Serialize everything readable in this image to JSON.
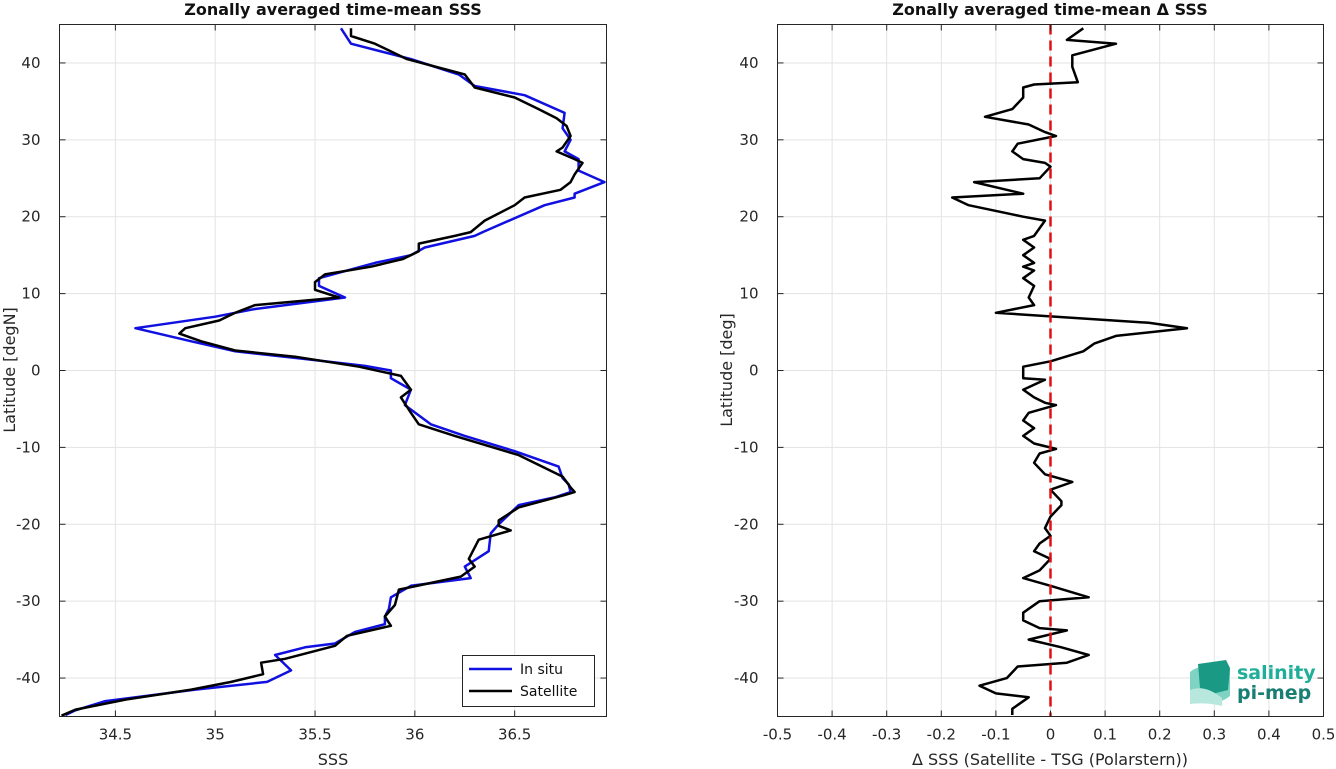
{
  "chart_data": [
    {
      "type": "line",
      "title": "Zonally averaged time-mean SSS",
      "xlabel": "SSS",
      "ylabel": "Latitude [degN]",
      "xlim": [
        34.22,
        36.96
      ],
      "ylim": [
        -45,
        45
      ],
      "xticks": [
        34.5,
        35,
        35.5,
        36,
        36.5
      ],
      "yticks": [
        -40,
        -30,
        -20,
        -10,
        0,
        10,
        20,
        30,
        40
      ],
      "grid": true,
      "legend": "bottom-right",
      "series": [
        {
          "name": "In situ",
          "color": "#1010e0",
          "points": [
            [
              35.63,
              44.5
            ],
            [
              35.68,
              42.5
            ],
            [
              35.98,
              40.5
            ],
            [
              36.22,
              38.5
            ],
            [
              36.3,
              37
            ],
            [
              36.55,
              35.8
            ],
            [
              36.75,
              33.5
            ],
            [
              36.74,
              31.5
            ],
            [
              36.78,
              30
            ],
            [
              36.75,
              28.5
            ],
            [
              36.82,
              27.5
            ],
            [
              36.82,
              26
            ],
            [
              36.95,
              24.5
            ],
            [
              36.8,
              23
            ],
            [
              36.8,
              22.5
            ],
            [
              36.65,
              21.5
            ],
            [
              36.34,
              18
            ],
            [
              36.3,
              17.5
            ],
            [
              36.05,
              16
            ],
            [
              35.98,
              15
            ],
            [
              35.8,
              14
            ],
            [
              35.52,
              12
            ],
            [
              35.52,
              11
            ],
            [
              35.65,
              9.5
            ],
            [
              35.2,
              8
            ],
            [
              35.0,
              7
            ],
            [
              34.6,
              5.5
            ],
            [
              34.88,
              3.8
            ],
            [
              35.1,
              2.5
            ],
            [
              35.45,
              1.5
            ],
            [
              35.75,
              0.6
            ],
            [
              35.88,
              0
            ],
            [
              35.88,
              -1
            ],
            [
              35.98,
              -2.5
            ],
            [
              35.95,
              -4.5
            ],
            [
              36.08,
              -7
            ],
            [
              36.25,
              -8.5
            ],
            [
              36.5,
              -10.5
            ],
            [
              36.72,
              -12.5
            ],
            [
              36.74,
              -14
            ],
            [
              36.77,
              -14.8
            ],
            [
              36.78,
              -15.8
            ],
            [
              36.7,
              -16.5
            ],
            [
              36.52,
              -17.5
            ],
            [
              36.42,
              -20
            ],
            [
              36.38,
              -21.2
            ],
            [
              36.37,
              -23.5
            ],
            [
              36.25,
              -25.5
            ],
            [
              36.28,
              -27
            ],
            [
              35.98,
              -28
            ],
            [
              35.88,
              -29.5
            ],
            [
              35.87,
              -31
            ],
            [
              35.85,
              -32
            ],
            [
              35.85,
              -33
            ],
            [
              35.7,
              -34
            ],
            [
              35.6,
              -35.5
            ],
            [
              35.45,
              -36
            ],
            [
              35.3,
              -37
            ],
            [
              35.38,
              -39
            ],
            [
              35.26,
              -40.5
            ],
            [
              34.9,
              -41.5
            ],
            [
              34.45,
              -43
            ],
            [
              34.3,
              -44.2
            ],
            [
              34.25,
              -44.8
            ]
          ]
        },
        {
          "name": "Satellite",
          "color": "#000000",
          "points": [
            [
              35.68,
              44.5
            ],
            [
              35.68,
              43.5
            ],
            [
              35.8,
              42.5
            ],
            [
              35.96,
              40.5
            ],
            [
              36.25,
              38.5
            ],
            [
              36.3,
              36.8
            ],
            [
              36.5,
              35.5
            ],
            [
              36.62,
              34
            ],
            [
              36.71,
              32.8
            ],
            [
              36.76,
              31.8
            ],
            [
              36.78,
              30.5
            ],
            [
              36.74,
              29
            ],
            [
              36.71,
              28.5
            ],
            [
              36.8,
              27.5
            ],
            [
              36.84,
              27
            ],
            [
              36.8,
              25.5
            ],
            [
              36.78,
              24.5
            ],
            [
              36.73,
              23.5
            ],
            [
              36.55,
              22.5
            ],
            [
              36.5,
              21.5
            ],
            [
              36.35,
              19.5
            ],
            [
              36.28,
              18
            ],
            [
              36.2,
              17.5
            ],
            [
              36.02,
              16.5
            ],
            [
              36.02,
              15.5
            ],
            [
              35.94,
              14.5
            ],
            [
              35.78,
              13.5
            ],
            [
              35.55,
              12.5
            ],
            [
              35.5,
              11.5
            ],
            [
              35.5,
              10.5
            ],
            [
              35.62,
              9.5
            ],
            [
              35.2,
              8.5
            ],
            [
              35.1,
              7.5
            ],
            [
              35.02,
              6.5
            ],
            [
              34.85,
              5.5
            ],
            [
              34.82,
              4.8
            ],
            [
              34.93,
              3.8
            ],
            [
              35.1,
              2.6
            ],
            [
              35.4,
              1.8
            ],
            [
              35.72,
              0.5
            ],
            [
              35.93,
              -0.7
            ],
            [
              35.98,
              -2.5
            ],
            [
              35.93,
              -3.5
            ],
            [
              35.98,
              -5.5
            ],
            [
              36.02,
              -7
            ],
            [
              36.2,
              -8.5
            ],
            [
              36.52,
              -11
            ],
            [
              36.74,
              -13.8
            ],
            [
              36.78,
              -15.2
            ],
            [
              36.8,
              -15.8
            ],
            [
              36.75,
              -16.2
            ],
            [
              36.52,
              -17.8
            ],
            [
              36.42,
              -19.5
            ],
            [
              36.42,
              -20.2
            ],
            [
              36.48,
              -20.8
            ],
            [
              36.32,
              -22
            ],
            [
              36.27,
              -24.5
            ],
            [
              36.3,
              -25.5
            ],
            [
              36.23,
              -26.8
            ],
            [
              35.92,
              -28.5
            ],
            [
              35.9,
              -30.5
            ],
            [
              35.85,
              -32
            ],
            [
              35.88,
              -33.2
            ],
            [
              35.66,
              -34.5
            ],
            [
              35.6,
              -35.8
            ],
            [
              35.35,
              -37.5
            ],
            [
              35.23,
              -38
            ],
            [
              35.24,
              -39.5
            ],
            [
              35.08,
              -40.5
            ],
            [
              34.88,
              -41.5
            ],
            [
              34.55,
              -42.8
            ],
            [
              34.3,
              -44.1
            ],
            [
              34.23,
              -44.9
            ]
          ]
        }
      ]
    },
    {
      "type": "line",
      "title": "Zonally averaged time-mean Δ SSS",
      "xlabel": "Δ SSS (Satellite - TSG (Polarstern))",
      "ylabel": "Latitude [deg]",
      "xlim": [
        -0.5,
        0.5
      ],
      "ylim": [
        -45,
        45
      ],
      "xticks": [
        -0.5,
        -0.4,
        -0.3,
        -0.2,
        -0.1,
        0,
        0.1,
        0.2,
        0.3,
        0.4,
        0.5
      ],
      "xtick_labels": [
        "-0.5",
        "-0.4",
        "-0.3",
        "-0.2",
        "-0.1",
        "0",
        "0.1",
        "0.2",
        "0.3",
        "0.4",
        "0.5"
      ],
      "yticks": [
        -40,
        -30,
        -20,
        -10,
        0,
        10,
        20,
        30,
        40
      ],
      "grid": true,
      "reference_line": {
        "x": 0,
        "color": "#e01010",
        "style": "dashed"
      },
      "series": [
        {
          "color": "#000000",
          "points": [
            [
              0.06,
              44.5
            ],
            [
              0.03,
              43
            ],
            [
              0.12,
              42.5
            ],
            [
              0.04,
              41
            ],
            [
              0.04,
              39.5
            ],
            [
              0.05,
              37.5
            ],
            [
              -0.03,
              37.2
            ],
            [
              -0.05,
              36.8
            ],
            [
              -0.05,
              35.5
            ],
            [
              -0.07,
              34
            ],
            [
              -0.12,
              33
            ],
            [
              -0.04,
              32
            ],
            [
              -0.01,
              31
            ],
            [
              0.01,
              30.5
            ],
            [
              -0.06,
              29.5
            ],
            [
              -0.07,
              28.5
            ],
            [
              -0.05,
              27.5
            ],
            [
              -0.01,
              27
            ],
            [
              0.0,
              26.5
            ],
            [
              -0.02,
              25
            ],
            [
              -0.14,
              24.5
            ],
            [
              -0.05,
              23
            ],
            [
              -0.18,
              22.5
            ],
            [
              -0.15,
              21.5
            ],
            [
              -0.05,
              20
            ],
            [
              -0.01,
              19.5
            ],
            [
              -0.03,
              17.5
            ],
            [
              -0.05,
              17
            ],
            [
              -0.03,
              16
            ],
            [
              -0.05,
              15
            ],
            [
              -0.03,
              14
            ],
            [
              -0.05,
              13.5
            ],
            [
              -0.03,
              13
            ],
            [
              -0.05,
              12
            ],
            [
              -0.03,
              11
            ],
            [
              -0.04,
              9.5
            ],
            [
              -0.03,
              8.5
            ],
            [
              -0.1,
              7.5
            ],
            [
              0.18,
              6.2
            ],
            [
              0.25,
              5.5
            ],
            [
              0.12,
              4.5
            ],
            [
              0.08,
              3.5
            ],
            [
              0.06,
              2.5
            ],
            [
              0.0,
              1.2
            ],
            [
              -0.05,
              0.5
            ],
            [
              -0.05,
              -1
            ],
            [
              -0.01,
              -1.2
            ],
            [
              -0.05,
              -2.5
            ],
            [
              -0.03,
              -3.5
            ],
            [
              -0.01,
              -4.2
            ],
            [
              0.01,
              -4.5
            ],
            [
              -0.04,
              -5.5
            ],
            [
              -0.05,
              -6.5
            ],
            [
              -0.03,
              -7.5
            ],
            [
              -0.05,
              -8.5
            ],
            [
              -0.03,
              -9.5
            ],
            [
              0.01,
              -10.2
            ],
            [
              -0.02,
              -10.8
            ],
            [
              -0.03,
              -12
            ],
            [
              -0.01,
              -13.5
            ],
            [
              0.04,
              -14.5
            ],
            [
              0.0,
              -15.5
            ],
            [
              0.02,
              -17
            ],
            [
              0.02,
              -17.5
            ],
            [
              0.0,
              -19
            ],
            [
              -0.01,
              -20.5
            ],
            [
              0.0,
              -21.5
            ],
            [
              -0.02,
              -22.5
            ],
            [
              -0.03,
              -23.5
            ],
            [
              0.0,
              -24.5
            ],
            [
              -0.02,
              -26
            ],
            [
              -0.05,
              -27
            ],
            [
              0.0,
              -28
            ],
            [
              0.07,
              -29.5
            ],
            [
              -0.02,
              -30
            ],
            [
              -0.05,
              -31.5
            ],
            [
              -0.05,
              -32.5
            ],
            [
              -0.02,
              -33.5
            ],
            [
              0.03,
              -33.8
            ],
            [
              -0.04,
              -35
            ],
            [
              0.02,
              -36
            ],
            [
              0.07,
              -37
            ],
            [
              0.03,
              -38
            ],
            [
              -0.06,
              -38.5
            ],
            [
              -0.08,
              -40
            ],
            [
              -0.13,
              -41
            ],
            [
              -0.1,
              -42
            ],
            [
              -0.04,
              -42.5
            ],
            [
              -0.07,
              -44
            ],
            [
              -0.07,
              -44.8
            ]
          ]
        }
      ]
    }
  ],
  "logo": {
    "line1": "salinity",
    "line2": "pi-mep",
    "color1": "#1fae99",
    "color2": "#1a7f73"
  }
}
